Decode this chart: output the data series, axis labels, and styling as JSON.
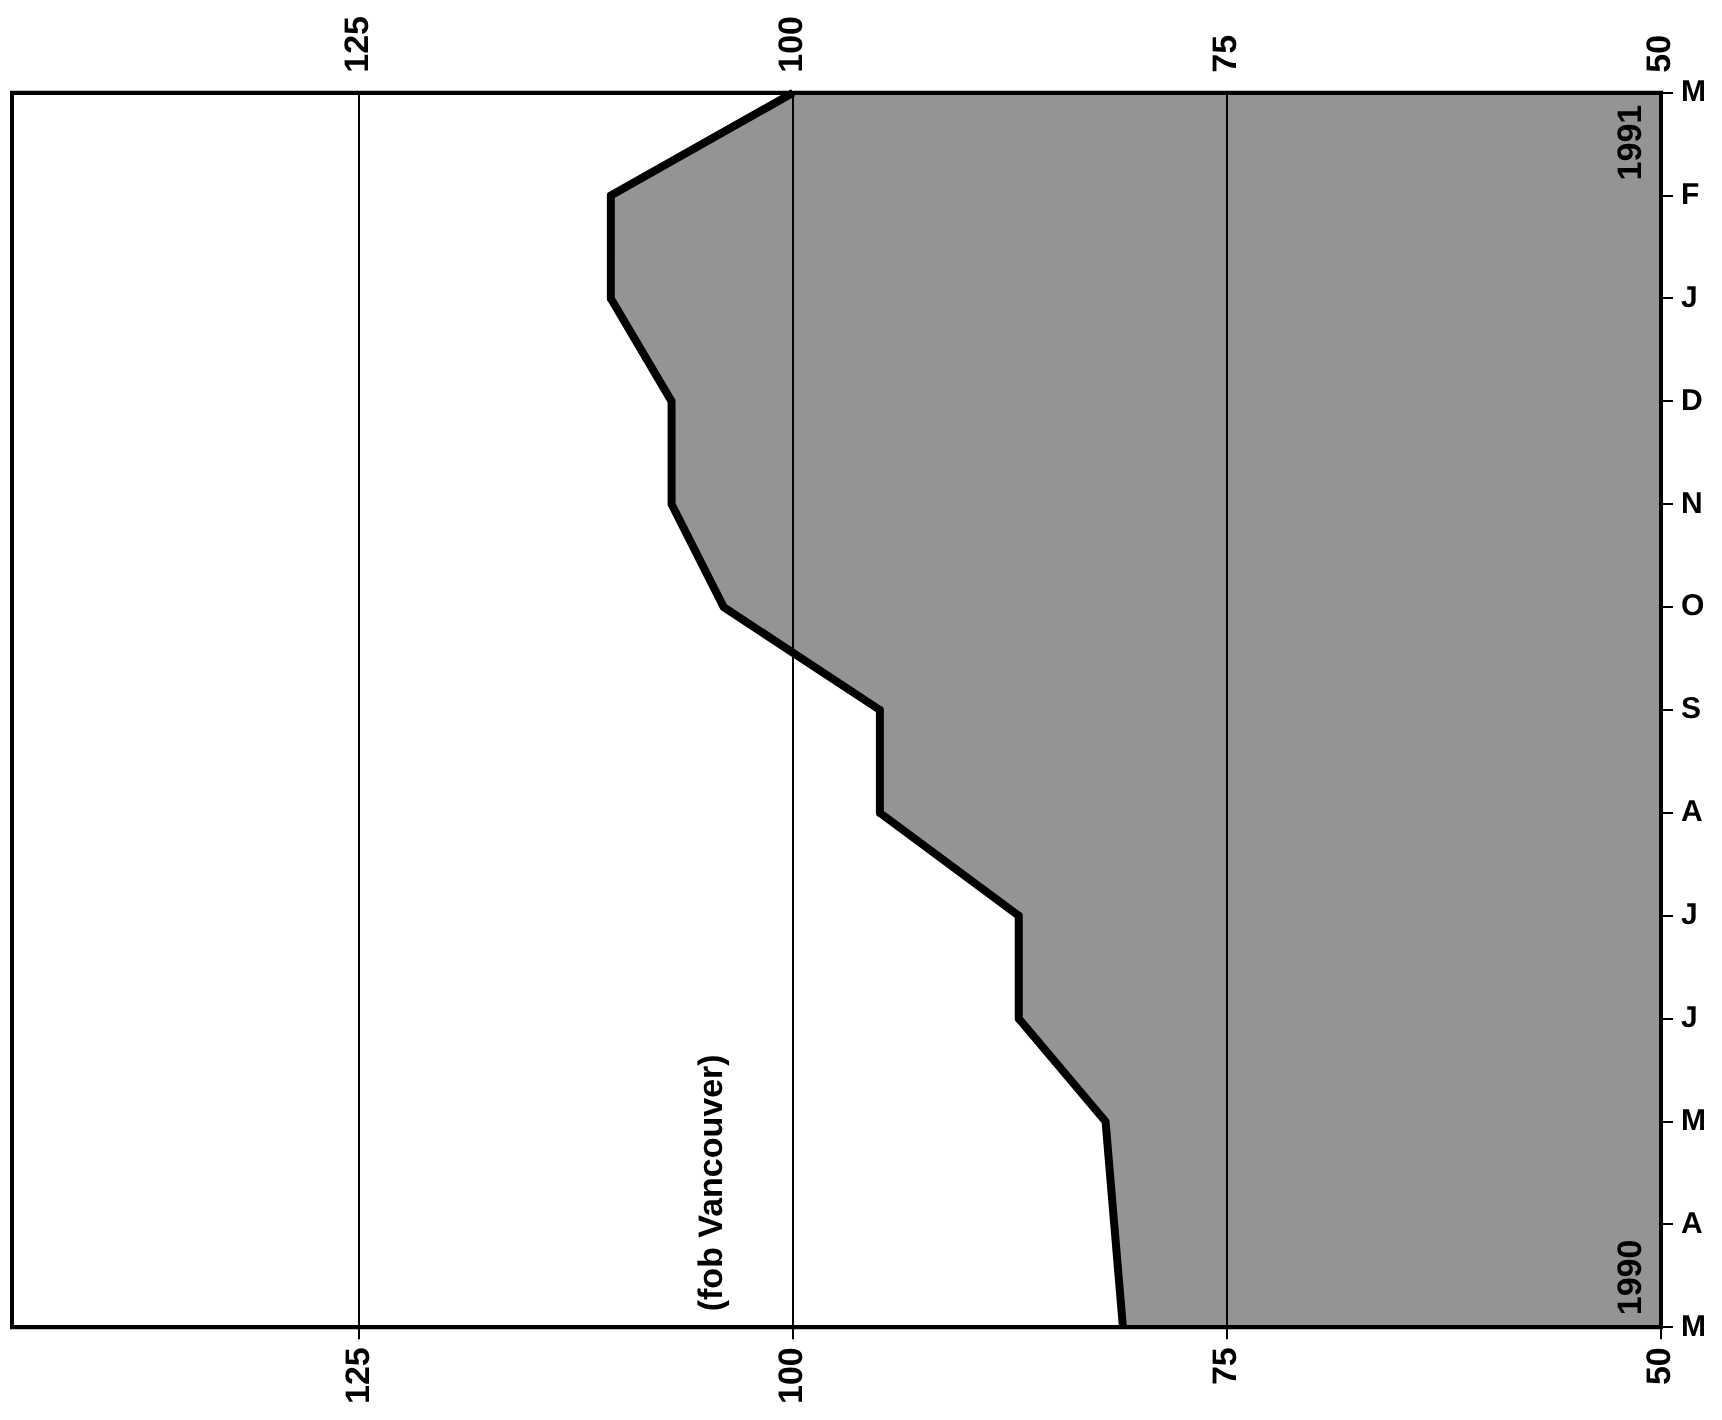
{
  "chart_data": {
    "type": "area",
    "orientation": "horizontal",
    "categories": [
      "M",
      "F",
      "J",
      "D",
      "N",
      "O",
      "S",
      "A",
      "J",
      "J",
      "M",
      "A",
      "M"
    ],
    "series": [
      {
        "color": "#000000",
        "values": [
          100,
          110.5,
          110.5,
          107,
          107,
          104,
          95,
          95,
          87,
          87,
          82,
          81.5,
          81
        ]
      }
    ],
    "xlim": [
      145,
      50
    ],
    "xticks": [
      125,
      100,
      75,
      50
    ],
    "x2lim": [
      145,
      50
    ],
    "x2ticks": [
      125,
      100,
      75,
      50
    ],
    "grid": "x",
    "legend": false,
    "annotations": [
      "1991",
      "1990",
      "(fob Vancouver)"
    ]
  }
}
